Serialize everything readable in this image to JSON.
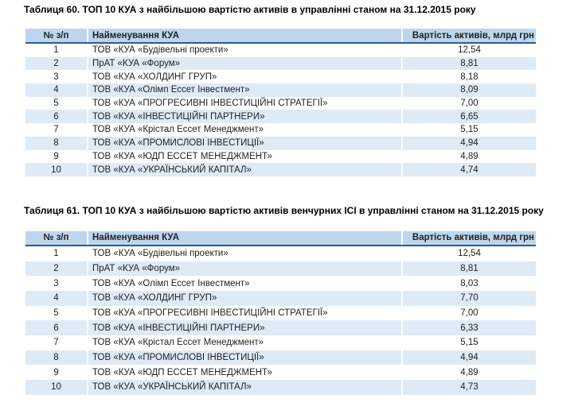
{
  "colors": {
    "header_bg": "#bdd6ee",
    "alt_row_bg": "#deeaf6",
    "header_border": "#2e5b8f",
    "text": "#1f1f1f"
  },
  "tables": [
    {
      "title": "Таблиця 60. ТОП 10 КУА з найбільшою вартістю активів в управлінні станом на 31.12.2015 року",
      "columns": [
        "№ з/п",
        "Найменування КУА",
        "Вартість активів, млрд грн"
      ],
      "rows": [
        {
          "num": "1",
          "name": "ТОВ «КУА «Будівельні проекти»",
          "value": "12,54"
        },
        {
          "num": "2",
          "name": "ПрАТ «КУА «Форум»",
          "value": "8,81"
        },
        {
          "num": "3",
          "name": "ТОВ «КУА «ХОЛДИНГ ГРУП»",
          "value": "8,18"
        },
        {
          "num": "4",
          "name": "ТОВ «КУА «Олімп Ессет Інвестмент»",
          "value": "8,09"
        },
        {
          "num": "5",
          "name": "ТОВ «КУА «ПРОГРЕСИВНІ ІНВЕСТИЦІЙНІ СТРАТЕГІЇ»",
          "value": "7,00"
        },
        {
          "num": "6",
          "name": "ТОВ «КУА «ІНВЕСТИЦІЙНІ ПАРТНЕРИ»",
          "value": "6,65"
        },
        {
          "num": "7",
          "name": "ТОВ «КУА «Крістал Ессет Менеджмент»",
          "value": "5,15"
        },
        {
          "num": "8",
          "name": "ТОВ «КУА «ПРОМИСЛОВІ ІНВЕСТИЦІЇ»",
          "value": "4,94"
        },
        {
          "num": "9",
          "name": "ТОВ «КУА «ЮДП ЕССЕТ МЕНЕДЖМЕНТ»",
          "value": "4,89"
        },
        {
          "num": "10",
          "name": "ТОВ «КУА «УКРАЇНСЬКИЙ КАПІТАЛ»",
          "value": "4,74"
        }
      ]
    },
    {
      "title": "Таблиця 61. ТОП 10 КУА з найбільшою вартістю активів венчурних ІСІ в управлінні станом на 31.12.2015 року",
      "columns": [
        "№ з/п",
        "Найменування КУА",
        "Вартість активів, млрд грн"
      ],
      "rows": [
        {
          "num": "1",
          "name": "ТОВ «КУА «Будівельні проекти»",
          "value": "12,54"
        },
        {
          "num": "2",
          "name": "ПрАТ «КУА «Форум»",
          "value": "8,81"
        },
        {
          "num": "3",
          "name": "ТОВ «КУА «Олімп Ессет Інвестмент»",
          "value": "8,03"
        },
        {
          "num": "4",
          "name": "ТОВ «КУА «ХОЛДИНГ ГРУП»",
          "value": "7,70"
        },
        {
          "num": "5",
          "name": "ТОВ «КУА «ПРОГРЕСИВНІ ІНВЕСТИЦІЙНІ СТРАТЕГІЇ»",
          "value": "7,00"
        },
        {
          "num": "6",
          "name": "ТОВ «КУА «ІНВЕСТИЦІЙНІ ПАРТНЕРИ»",
          "value": "6,33"
        },
        {
          "num": "7",
          "name": "ТОВ «КУА «Крістал Ессет Менеджмент»",
          "value": "5,15"
        },
        {
          "num": "8",
          "name": "ТОВ «КУА «ПРОМИСЛОВІ ІНВЕСТИЦІЇ»",
          "value": "4,94"
        },
        {
          "num": "9",
          "name": "ТОВ «КУА «ЮДП ЕССЕТ МЕНЕДЖМЕНТ»",
          "value": "4,89"
        },
        {
          "num": "10",
          "name": "ТОВ «КУА «УКРАЇНСЬКИЙ КАПІТАЛ»",
          "value": "4,73"
        }
      ]
    }
  ]
}
